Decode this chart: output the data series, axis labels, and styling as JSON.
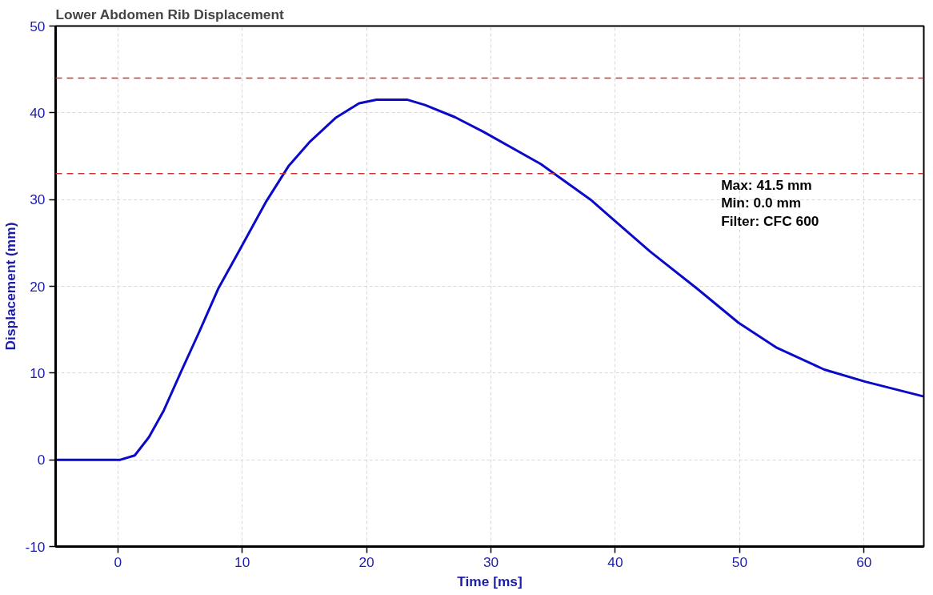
{
  "chart_data": {
    "type": "line",
    "title": "Lower Abdomen Rib Displacement",
    "xlabel": "Time [ms]",
    "ylabel": "Displacement (mm)",
    "xlim": [
      -5,
      64.8
    ],
    "ylim": [
      -10,
      50
    ],
    "xticks": [
      0,
      10,
      20,
      30,
      40,
      50,
      60
    ],
    "yticks": [
      -10,
      0,
      10,
      20,
      30,
      40,
      50
    ],
    "grid": true,
    "line_style": "solid",
    "series": [
      {
        "color": "#0a0ac8",
        "x": [
          -5,
          0.2,
          1.36,
          2.5,
          3.7,
          5.1,
          6.5,
          8.1,
          9.8,
          11.9,
          13.75,
          15.4,
          17.5,
          19.4,
          20.8,
          23.3,
          24.7,
          27.1,
          29.4,
          34.0,
          38.0,
          42.8,
          46.6,
          49.9,
          53.0,
          56.8,
          60.1,
          64.8
        ],
        "values": [
          0,
          0,
          0.5,
          2.6,
          5.7,
          10.2,
          14.6,
          19.8,
          24.2,
          29.7,
          33.9,
          36.6,
          39.4,
          41.1,
          41.5,
          41.5,
          40.9,
          39.5,
          37.8,
          34.1,
          30.0,
          24.0,
          19.7,
          15.8,
          12.9,
          10.4,
          9.0,
          7.3
        ]
      }
    ],
    "ref_lines": [
      {
        "axis": "y",
        "value": 44,
        "color": "#cc3333",
        "line_style": "dashed"
      },
      {
        "axis": "y",
        "value": 33,
        "color": "#cc3333",
        "line_style": "dashed"
      }
    ],
    "annotations": [
      "Max:  41.5 mm",
      "Min:   0.0 mm",
      "Filter: CFC 600"
    ]
  }
}
